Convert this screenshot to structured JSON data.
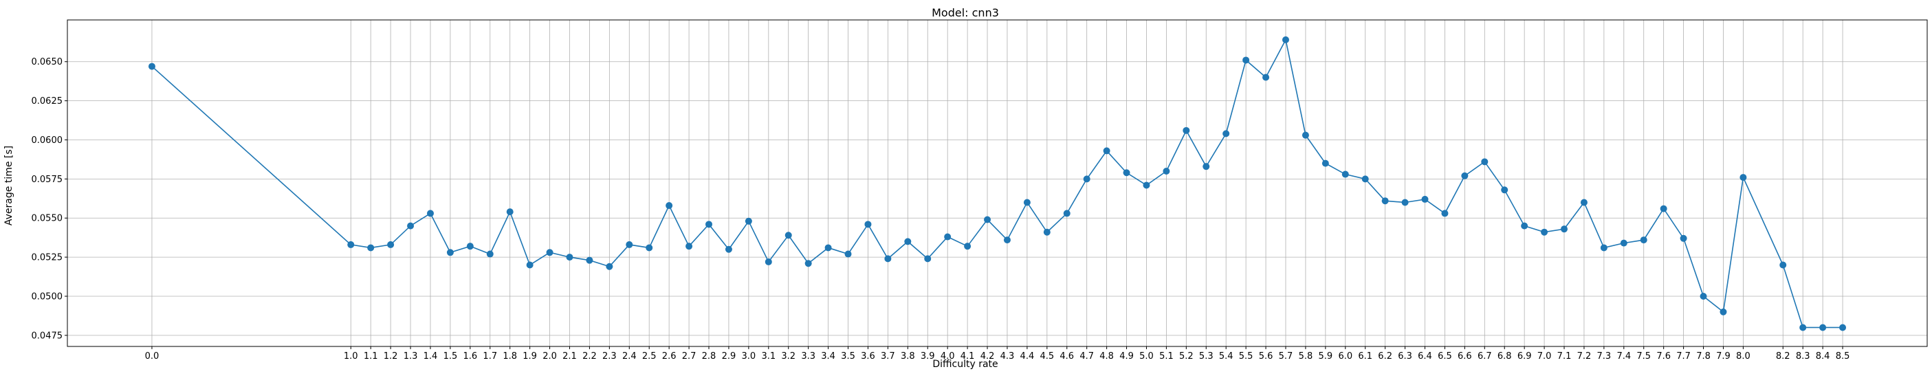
{
  "chart_data": {
    "type": "line",
    "title": "Model: cnn3",
    "xlabel": "Difficulty rate",
    "ylabel": "Average time [s]",
    "grid": true,
    "line_color": "#1f77b4",
    "xlim": [
      -0.425,
      8.925
    ],
    "ylim": [
      0.04679,
      0.06767
    ],
    "yticks": [
      0.0475,
      0.05,
      0.0525,
      0.055,
      0.0575,
      0.06,
      0.0625,
      0.065
    ],
    "ytick_labels": [
      "0.0475",
      "0.0500",
      "0.0525",
      "0.0550",
      "0.0575",
      "0.0600",
      "0.0625",
      "0.0650"
    ],
    "x": [
      0.0,
      1.0,
      1.1,
      1.2,
      1.3,
      1.4,
      1.5,
      1.6,
      1.7,
      1.8,
      1.9,
      2.0,
      2.1,
      2.2,
      2.3,
      2.4,
      2.5,
      2.6,
      2.7,
      2.8,
      2.9,
      3.0,
      3.1,
      3.2,
      3.3,
      3.4,
      3.5,
      3.6,
      3.7,
      3.8,
      3.9,
      4.0,
      4.1,
      4.2,
      4.3,
      4.4,
      4.5,
      4.6,
      4.7,
      4.8,
      4.9,
      5.0,
      5.1,
      5.2,
      5.3,
      5.4,
      5.5,
      5.6,
      5.7,
      5.8,
      5.9,
      6.0,
      6.1,
      6.2,
      6.3,
      6.4,
      6.5,
      6.6,
      6.7,
      6.8,
      6.9,
      7.0,
      7.1,
      7.2,
      7.3,
      7.4,
      7.5,
      7.6,
      7.7,
      7.8,
      7.9,
      8.0,
      8.2,
      8.3,
      8.4,
      8.5
    ],
    "xtick_labels": [
      "0.0",
      "1.0",
      "1.1",
      "1.2",
      "1.3",
      "1.4",
      "1.5",
      "1.6",
      "1.7",
      "1.8",
      "1.9",
      "2.0",
      "2.1",
      "2.2",
      "2.3",
      "2.4",
      "2.5",
      "2.6",
      "2.7",
      "2.8",
      "2.9",
      "3.0",
      "3.1",
      "3.2",
      "3.3",
      "3.4",
      "3.5",
      "3.6",
      "3.7",
      "3.8",
      "3.9",
      "4.0",
      "4.1",
      "4.2",
      "4.3",
      "4.4",
      "4.5",
      "4.6",
      "4.7",
      "4.8",
      "4.9",
      "5.0",
      "5.1",
      "5.2",
      "5.3",
      "5.4",
      "5.5",
      "5.6",
      "5.7",
      "5.8",
      "5.9",
      "6.0",
      "6.1",
      "6.2",
      "6.3",
      "6.4",
      "6.5",
      "6.6",
      "6.7",
      "6.8",
      "6.9",
      "7.0",
      "7.1",
      "7.2",
      "7.3",
      "7.4",
      "7.5",
      "7.6",
      "7.7",
      "7.8",
      "7.9",
      "8.0",
      "8.2",
      "8.3",
      "8.4",
      "8.5"
    ],
    "y": [
      0.0647,
      0.0533,
      0.0531,
      0.0533,
      0.0545,
      0.0553,
      0.0528,
      0.0532,
      0.0527,
      0.0554,
      0.052,
      0.0528,
      0.0525,
      0.0523,
      0.0519,
      0.0533,
      0.0531,
      0.0558,
      0.0532,
      0.0546,
      0.053,
      0.0548,
      0.0522,
      0.0539,
      0.0521,
      0.0531,
      0.0527,
      0.0546,
      0.0524,
      0.0535,
      0.0524,
      0.0538,
      0.0532,
      0.0549,
      0.0536,
      0.056,
      0.0541,
      0.0553,
      0.0575,
      0.0593,
      0.0579,
      0.0571,
      0.058,
      0.0606,
      0.0583,
      0.0604,
      0.0651,
      0.064,
      0.0664,
      0.0603,
      0.0585,
      0.0578,
      0.0575,
      0.0561,
      0.056,
      0.0562,
      0.0553,
      0.0577,
      0.0586,
      0.0568,
      0.0545,
      0.0541,
      0.0543,
      0.056,
      0.0531,
      0.0534,
      0.0536,
      0.0556,
      0.0537,
      0.05,
      0.049,
      0.0576,
      0.052,
      0.048,
      0.048,
      0.048
    ]
  }
}
